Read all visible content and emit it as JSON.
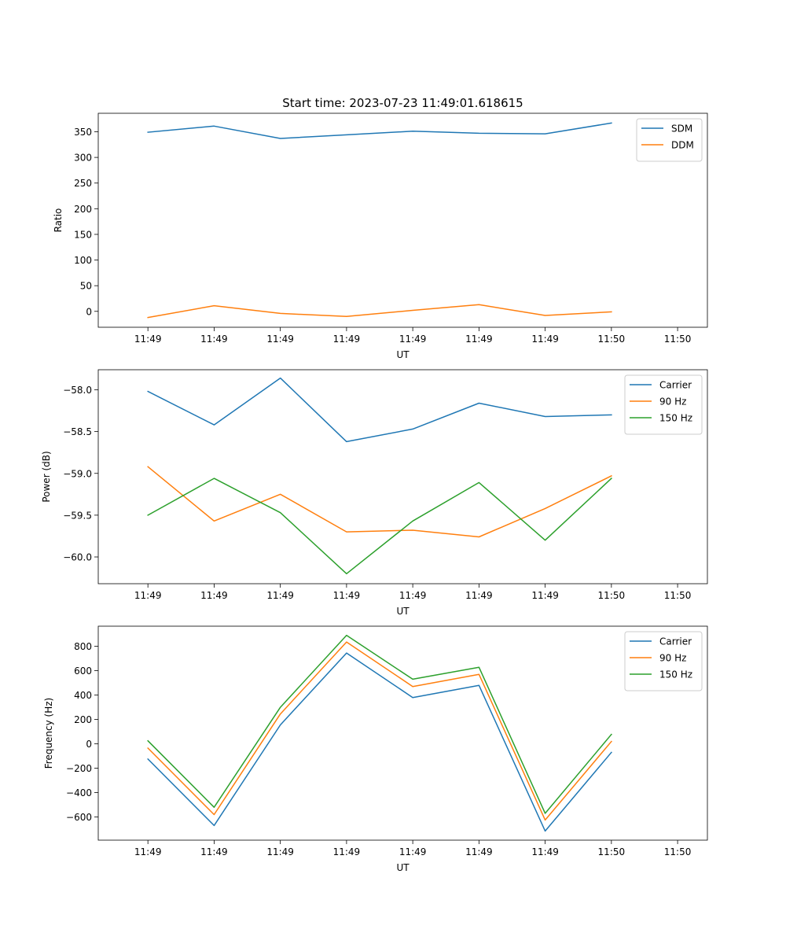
{
  "figure": {
    "title": "Start time: 2023-07-23 11:49:01.618615"
  },
  "chart_data": [
    {
      "type": "line",
      "title": "Start time: 2023-07-23 11:49:01.618615",
      "xlabel": "UT",
      "ylabel": "Ratio",
      "x": [
        0,
        1,
        2,
        3,
        4,
        5,
        6,
        7
      ],
      "x_tick_labels": [
        "11:49",
        "11:49",
        "11:49",
        "11:49",
        "11:49",
        "11:49",
        "11:49"
      ],
      "x_last_tick_label": "11:50",
      "xlim": [
        -0.75,
        8.45
      ],
      "ylim": [
        -31,
        386
      ],
      "yticks": [
        0,
        50,
        100,
        150,
        200,
        250,
        300,
        350
      ],
      "ytick_labels": [
        "0",
        "50",
        "100",
        "150",
        "200",
        "250",
        "300",
        "350"
      ],
      "legend_position": "top-right",
      "series": [
        {
          "name": "SDM",
          "color": "#1f77b4",
          "values": [
            349,
            361,
            337,
            344,
            351,
            347,
            346,
            367
          ]
        },
        {
          "name": "DDM",
          "color": "#ff7f0e",
          "values": [
            -12,
            11,
            -4,
            -10,
            2,
            13,
            -8,
            -1
          ]
        }
      ]
    },
    {
      "type": "line",
      "title": "",
      "xlabel": "UT",
      "ylabel": "Power (dB)",
      "x": [
        0,
        1,
        2,
        3,
        4,
        5,
        6,
        7
      ],
      "x_tick_labels": [
        "11:49",
        "11:49",
        "11:49",
        "11:49",
        "11:49",
        "11:49",
        "11:49"
      ],
      "x_last_tick_label": "11:50",
      "xlim": [
        -0.75,
        8.45
      ],
      "ylim": [
        -60.32,
        -57.76
      ],
      "yticks": [
        -60.0,
        -59.5,
        -59.0,
        -58.5,
        -58.0
      ],
      "ytick_labels": [
        "−60.0",
        "−59.5",
        "−59.0",
        "−58.5",
        "−58.0"
      ],
      "legend_position": "top-right",
      "series": [
        {
          "name": "Carrier",
          "color": "#1f77b4",
          "values": [
            -58.02,
            -58.42,
            -57.86,
            -58.62,
            -58.47,
            -58.16,
            -58.32,
            -58.3
          ]
        },
        {
          "name": "90 Hz",
          "color": "#ff7f0e",
          "values": [
            -58.92,
            -59.57,
            -59.25,
            -59.7,
            -59.68,
            -59.76,
            -59.42,
            -59.03
          ]
        },
        {
          "name": "150 Hz",
          "color": "#2ca02c",
          "values": [
            -59.5,
            -59.06,
            -59.47,
            -60.2,
            -59.57,
            -59.11,
            -59.8,
            -59.06
          ]
        }
      ]
    },
    {
      "type": "line",
      "title": "",
      "xlabel": "UT",
      "ylabel": "Frequency (Hz)",
      "x": [
        0,
        1,
        2,
        3,
        4,
        5,
        6,
        7
      ],
      "x_tick_labels": [
        "11:49",
        "11:49",
        "11:49",
        "11:49",
        "11:49",
        "11:49",
        "11:49"
      ],
      "x_last_tick_label": "11:50",
      "xlim": [
        -0.75,
        8.45
      ],
      "ylim": [
        -790,
        965
      ],
      "yticks": [
        -600,
        -400,
        -200,
        0,
        200,
        400,
        600,
        800
      ],
      "ytick_labels": [
        "−600",
        "−400",
        "−200",
        "0",
        "200",
        "400",
        "600",
        "800"
      ],
      "legend_position": "top-right",
      "series": [
        {
          "name": "Carrier",
          "color": "#1f77b4",
          "values": [
            -125,
            -670,
            155,
            745,
            380,
            480,
            -715,
            -70
          ]
        },
        {
          "name": "90 Hz",
          "color": "#ff7f0e",
          "values": [
            -35,
            -580,
            245,
            835,
            470,
            570,
            -625,
            20
          ]
        },
        {
          "name": "150 Hz",
          "color": "#2ca02c",
          "values": [
            25,
            -520,
            300,
            890,
            530,
            628,
            -570,
            78
          ]
        }
      ]
    }
  ]
}
